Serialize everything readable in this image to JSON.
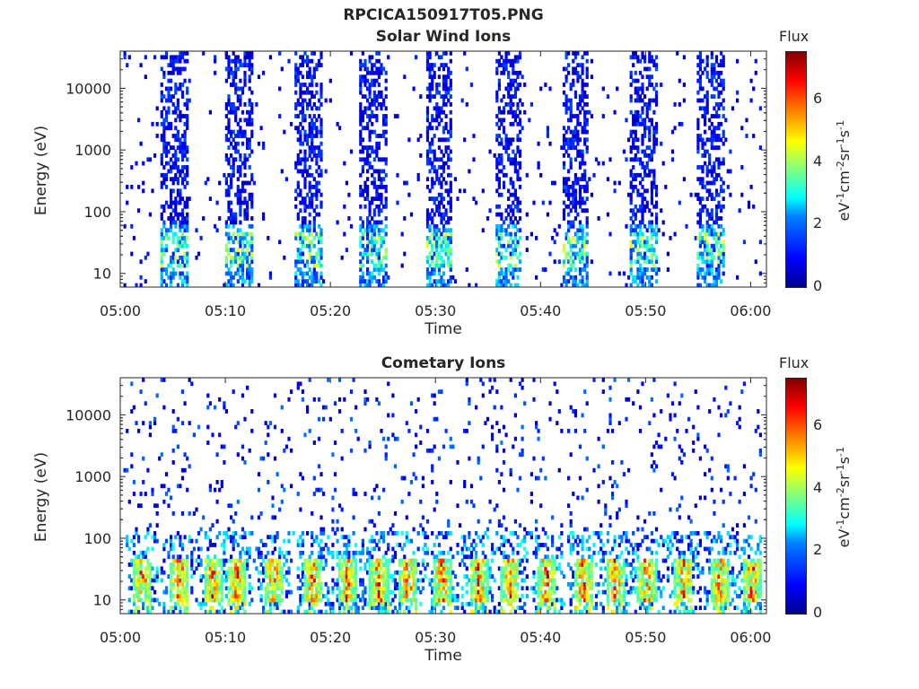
{
  "figure": {
    "filename": "RPCICA150917T05.PNG",
    "colorscale": [
      "#00008f",
      "#0000ff",
      "#0080ff",
      "#00ffff",
      "#80ff80",
      "#ffff00",
      "#ff8000",
      "#ff0000",
      "#800000"
    ]
  },
  "colorbar": {
    "title": "Flux",
    "unit_parts": [
      "eV",
      "-1",
      "cm",
      "-2",
      "sr",
      "-1",
      "s",
      "-1"
    ],
    "ticks": [
      "0",
      "2",
      "4",
      "6"
    ],
    "range": [
      0,
      7.3
    ]
  },
  "chart_data": [
    {
      "type": "heatmap",
      "title": "Solar Wind Ions",
      "xlabel": "Time",
      "ylabel": "Energy (eV)",
      "x_tick_labels": [
        "05:00",
        "05:10",
        "05:20",
        "05:30",
        "05:40",
        "05:50",
        "06:00"
      ],
      "x_range_minutes": [
        0,
        61.5
      ],
      "y_tick_labels": [
        "10",
        "100",
        "1000",
        "10000"
      ],
      "y_range": [
        6,
        40000
      ],
      "y_scale": "log",
      "color_range": [
        0,
        7.3
      ],
      "bursts_center_minutes": [
        5.0,
        11.2,
        17.8,
        24.0,
        30.2,
        36.8,
        43.2,
        49.6,
        56.0
      ],
      "peak_flux_approx": 4.5,
      "peak_energy_eV": [
        15,
        40
      ]
    },
    {
      "type": "heatmap",
      "title": "Cometary Ions",
      "xlabel": "Time",
      "ylabel": "Energy (eV)",
      "x_tick_labels": [
        "05:00",
        "05:10",
        "05:20",
        "05:30",
        "05:40",
        "05:50",
        "06:00"
      ],
      "x_range_minutes": [
        0,
        61.5
      ],
      "y_tick_labels": [
        "10",
        "100",
        "1000",
        "10000"
      ],
      "y_range": [
        6,
        40000
      ],
      "y_scale": "log",
      "color_range": [
        0,
        7.3
      ],
      "bursts_center_minutes": [
        2.0,
        5.5,
        8.7,
        11.0,
        14.5,
        18.2,
        21.5,
        24.5,
        27.3,
        30.5,
        34.0,
        37.0,
        40.5,
        44.0,
        47.0,
        50.0,
        53.5,
        57.0,
        60.0
      ],
      "peak_flux_approx": 7.0,
      "peak_energy_eV": [
        12,
        40
      ]
    }
  ]
}
